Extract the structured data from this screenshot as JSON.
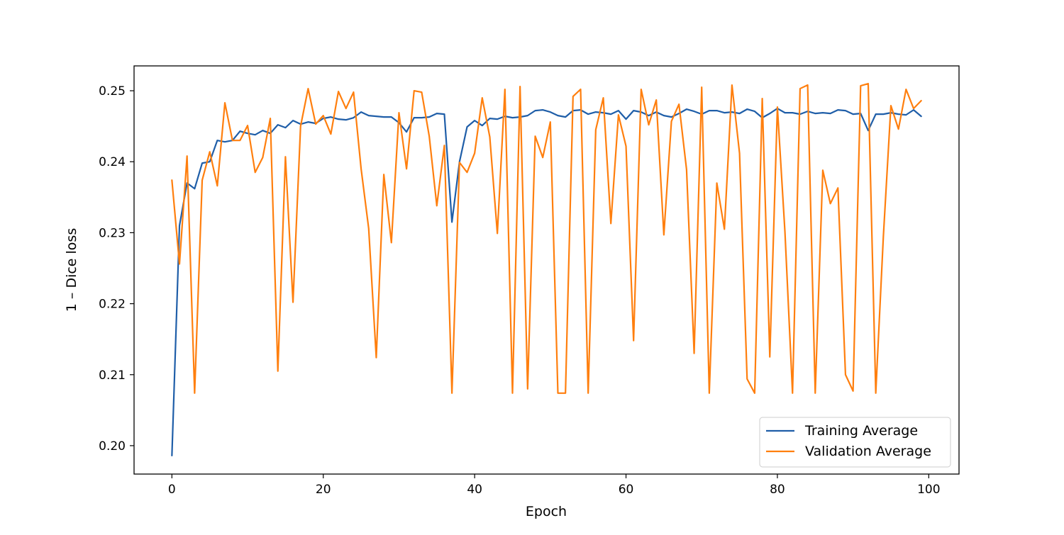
{
  "chart_data": {
    "type": "line",
    "title": "",
    "xlabel": "Epoch",
    "ylabel": "1 – Dice loss",
    "xlim": [
      -5,
      104
    ],
    "ylim": [
      0.196,
      0.2535
    ],
    "xticks": [
      0,
      20,
      40,
      60,
      80,
      100
    ],
    "xtick_labels": [
      "0",
      "20",
      "40",
      "60",
      "80",
      "100"
    ],
    "yticks": [
      0.2,
      0.21,
      0.22,
      0.23,
      0.24,
      0.25
    ],
    "ytick_labels": [
      "0.20",
      "0.21",
      "0.22",
      "0.23",
      "0.24",
      "0.25"
    ],
    "grid": false,
    "legend_position": "lower-right",
    "x": [
      0,
      1,
      2,
      3,
      4,
      5,
      6,
      7,
      8,
      9,
      10,
      11,
      12,
      13,
      14,
      15,
      16,
      17,
      18,
      19,
      20,
      21,
      22,
      23,
      24,
      25,
      26,
      27,
      28,
      29,
      30,
      31,
      32,
      33,
      34,
      35,
      36,
      37,
      38,
      39,
      40,
      41,
      42,
      43,
      44,
      45,
      46,
      47,
      48,
      49,
      50,
      51,
      52,
      53,
      54,
      55,
      56,
      57,
      58,
      59,
      60,
      61,
      62,
      63,
      64,
      65,
      66,
      67,
      68,
      69,
      70,
      71,
      72,
      73,
      74,
      75,
      76,
      77,
      78,
      79,
      80,
      81,
      82,
      83,
      84,
      85,
      86,
      87,
      88,
      89,
      90,
      91,
      92,
      93,
      94,
      95,
      96,
      97,
      98,
      99
    ],
    "series": [
      {
        "name": "Training Average",
        "color": "#1f5ea8",
        "values": [
          0.1986,
          0.231,
          0.237,
          0.2362,
          0.2398,
          0.24,
          0.243,
          0.2428,
          0.243,
          0.2443,
          0.244,
          0.2438,
          0.2444,
          0.244,
          0.2452,
          0.2448,
          0.2458,
          0.2453,
          0.2456,
          0.2454,
          0.2461,
          0.2463,
          0.246,
          0.2459,
          0.2462,
          0.247,
          0.2465,
          0.2464,
          0.2463,
          0.2463,
          0.2455,
          0.2442,
          0.2462,
          0.2462,
          0.2463,
          0.2468,
          0.2467,
          0.2315,
          0.24,
          0.2449,
          0.2458,
          0.2451,
          0.2461,
          0.246,
          0.2464,
          0.2462,
          0.2463,
          0.2465,
          0.2472,
          0.2473,
          0.247,
          0.2465,
          0.2463,
          0.2472,
          0.2473,
          0.2467,
          0.247,
          0.2469,
          0.2467,
          0.2472,
          0.246,
          0.2472,
          0.247,
          0.2465,
          0.247,
          0.2465,
          0.2463,
          0.2468,
          0.2474,
          0.2471,
          0.2467,
          0.2472,
          0.2472,
          0.2469,
          0.247,
          0.2468,
          0.2474,
          0.2471,
          0.2462,
          0.2468,
          0.2475,
          0.2469,
          0.2469,
          0.2467,
          0.2471,
          0.2468,
          0.2469,
          0.2468,
          0.2473,
          0.2472,
          0.2467,
          0.2468,
          0.2444,
          0.2467,
          0.2467,
          0.2469,
          0.2467,
          0.2466,
          0.2473,
          0.2464
        ]
      },
      {
        "name": "Validation Average",
        "color": "#ff7f0e",
        "values": [
          0.2374,
          0.2256,
          0.2408,
          0.2074,
          0.2374,
          0.2414,
          0.2366,
          0.2483,
          0.243,
          0.243,
          0.2451,
          0.2385,
          0.2406,
          0.2461,
          0.2105,
          0.2407,
          0.2202,
          0.245,
          0.2503,
          0.2453,
          0.2465,
          0.2439,
          0.2499,
          0.2475,
          0.2498,
          0.239,
          0.2306,
          0.2124,
          0.2382,
          0.2286,
          0.2469,
          0.239,
          0.25,
          0.2498,
          0.2436,
          0.2338,
          0.2423,
          0.2074,
          0.2399,
          0.2385,
          0.2412,
          0.249,
          0.2435,
          0.2299,
          0.2502,
          0.2074,
          0.2506,
          0.208,
          0.2436,
          0.2406,
          0.2456,
          0.2074,
          0.2074,
          0.2492,
          0.2502,
          0.2074,
          0.2445,
          0.249,
          0.2313,
          0.2466,
          0.2422,
          0.2148,
          0.2502,
          0.2452,
          0.2487,
          0.2297,
          0.2457,
          0.2481,
          0.2389,
          0.213,
          0.2505,
          0.2074,
          0.237,
          0.2305,
          0.2508,
          0.2412,
          0.2094,
          0.2074,
          0.2489,
          0.2125,
          0.2477,
          0.2301,
          0.2074,
          0.2503,
          0.2508,
          0.2074,
          0.2388,
          0.2341,
          0.2363,
          0.21,
          0.2077,
          0.2507,
          0.251,
          0.2074,
          0.2294,
          0.2479,
          0.2446,
          0.2502,
          0.2475,
          0.2486
        ]
      }
    ]
  }
}
